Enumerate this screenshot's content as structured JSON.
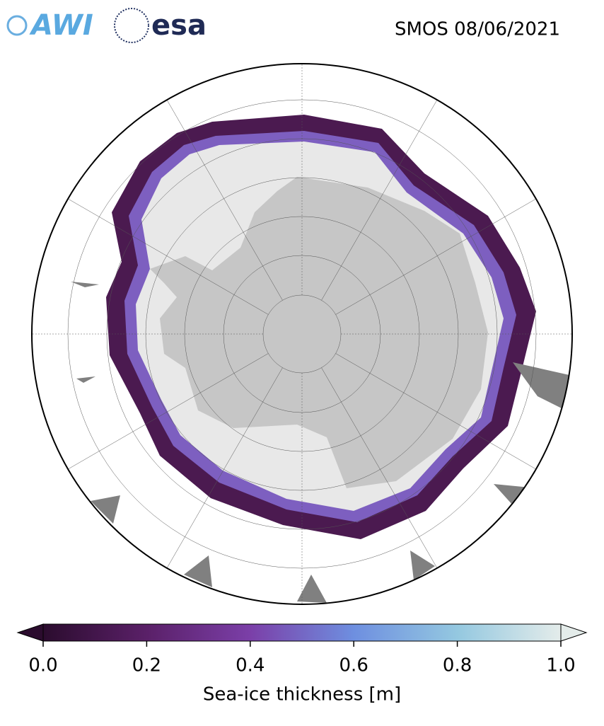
{
  "logos": {
    "awi": "AWI",
    "esa": "esa"
  },
  "chart_data": {
    "type": "map",
    "title": "SMOS 08/06/2021",
    "colorbar": {
      "label": "Sea-ice thickness [m]",
      "lim": [
        0,
        1
      ],
      "ticks": [
        {
          "value": 0,
          "label": "0.0"
        },
        0.2,
        0.4,
        0.6,
        0.8,
        {
          "value": 1,
          "label": "1.0"
        }
      ],
      "colors": [
        "#2b0c2e",
        "#5a2068",
        "#7b3fa8",
        "#6e8fe0",
        "#94c8e0",
        "#e4ecea"
      ]
    }
  }
}
